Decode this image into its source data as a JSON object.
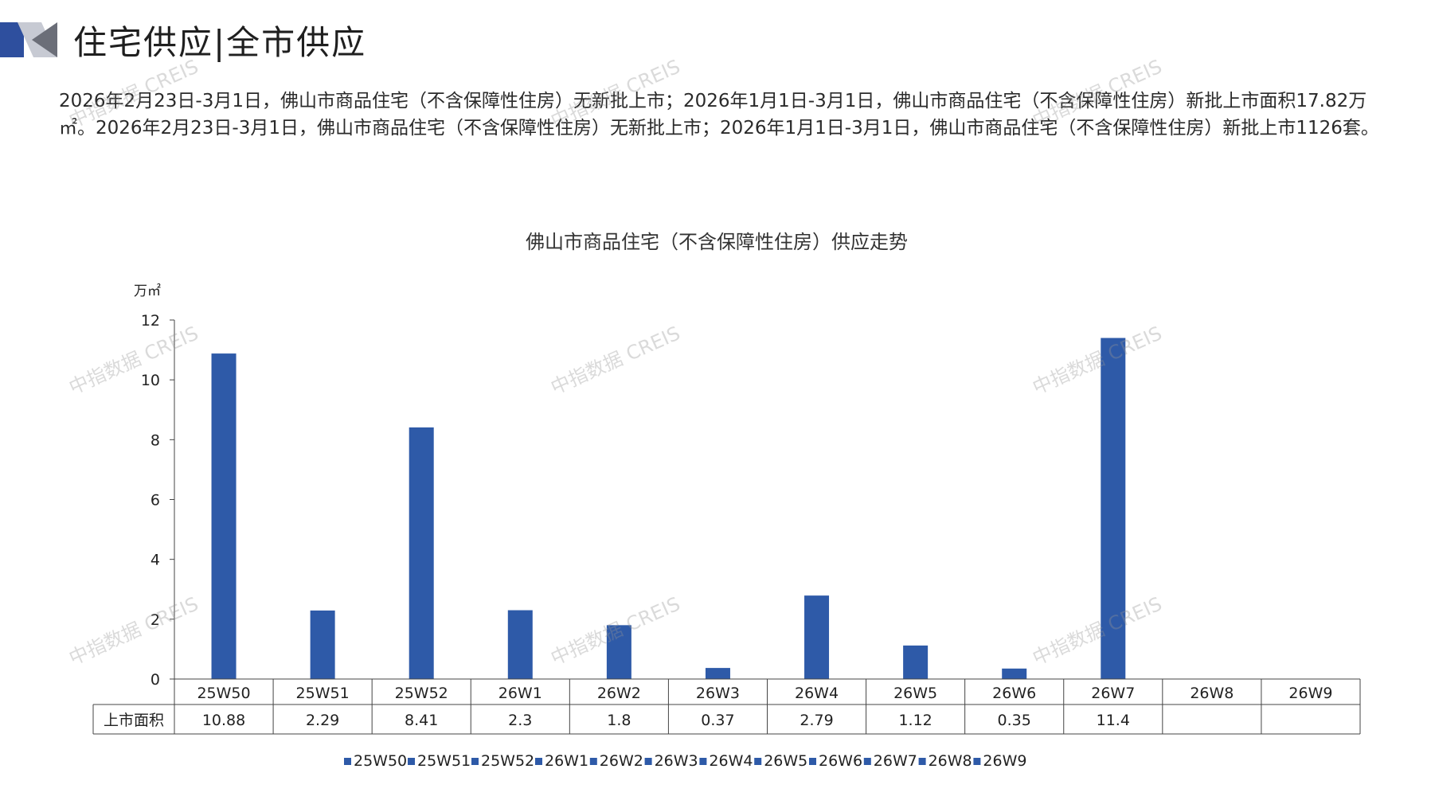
{
  "header": {
    "title": "住宅供应|全市供应",
    "accent_color": "#2e4f9e"
  },
  "intro": {
    "text": "2026年2月23日-3月1日，佛山市商品住宅（不含保障性住房）无新批上市；2026年1月1日-3月1日，佛山市商品住宅（不含保障性住房）新批上市面积17.82万㎡。2026年2月23日-3月1日，佛山市商品住宅（不含保障性住房）无新批上市；2026年1月1日-3月1日，佛山市商品住宅（不含保障性住房）新批上市1126套。"
  },
  "watermark": {
    "text": "中指数据 CREIS"
  },
  "chart_data": {
    "type": "bar",
    "title": "佛山市商品住宅（不含保障性住房）供应走势",
    "ylabel": "万㎡",
    "ylim": [
      0,
      12
    ],
    "yticks": [
      0,
      2,
      4,
      6,
      8,
      10,
      12
    ],
    "categories": [
      "25W50",
      "25W51",
      "25W52",
      "26W1",
      "26W2",
      "26W3",
      "26W4",
      "26W5",
      "26W6",
      "26W7",
      "26W8",
      "26W9"
    ],
    "series": [
      {
        "name": "上市面积",
        "values": [
          10.88,
          2.29,
          8.41,
          2.3,
          1.8,
          0.37,
          2.79,
          1.12,
          0.35,
          11.4,
          null,
          null
        ],
        "labels": [
          "10.88",
          "2.29",
          "8.41",
          "2.3",
          "1.8",
          "0.37",
          "2.79",
          "1.12",
          "0.35",
          "11.4",
          "",
          ""
        ]
      }
    ],
    "bar_color": "#2e5aa8",
    "legend_placement": "bottom",
    "data_table": true,
    "grid": false
  }
}
